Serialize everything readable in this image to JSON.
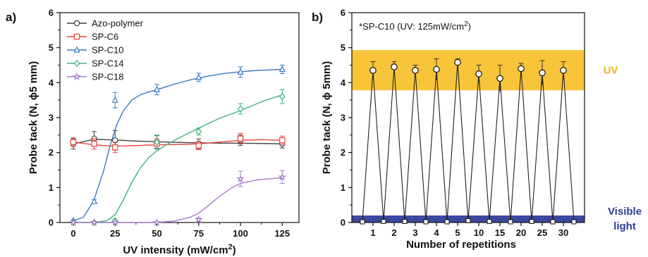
{
  "colors": {
    "azo": "#404040",
    "c6": "#e8433c",
    "c10": "#3b79c4",
    "c14": "#3fb27f",
    "c18": "#a67dc6",
    "uv_band": "#f8c53a",
    "uv_text": "#f2b01e",
    "visible_band": "#3c47a0",
    "visible_text": "#2f3f9d"
  },
  "chart_data": [
    {
      "type": "line",
      "panel_label": "a)",
      "xlabel": "UV intensity (mW/cm",
      "xlabel_sup": "2",
      "xlabel_end": ")",
      "ylabel": "Probe tack (N, ϕ5 mm)",
      "xlim": [
        -8,
        135
      ],
      "ylim": [
        0,
        6
      ],
      "xticks": [
        0,
        25,
        50,
        75,
        100,
        125
      ],
      "yticks": [
        0,
        1,
        2,
        3,
        4,
        5,
        6
      ],
      "legend_position": "top-left",
      "series": [
        {
          "name": "Azo-polymer",
          "color_key": "azo",
          "marker": "circle",
          "x": [
            0,
            12.5,
            25,
            50,
            75,
            100,
            125
          ],
          "y": [
            2.25,
            2.4,
            2.35,
            2.3,
            2.25,
            2.35,
            2.25
          ],
          "err": [
            0.15,
            0.2,
            0.28,
            0.18,
            0.14,
            0.15,
            0.12
          ],
          "fit_x": [
            0,
            12.5,
            25,
            37.5,
            50,
            62.5,
            75,
            87.5,
            100,
            112.5,
            125
          ],
          "fit_y": [
            2.25,
            2.38,
            2.36,
            2.33,
            2.31,
            2.29,
            2.28,
            2.27,
            2.27,
            2.26,
            2.25
          ]
        },
        {
          "name": "SP-C6",
          "color_key": "c6",
          "marker": "square",
          "x": [
            0,
            12.5,
            25,
            50,
            75,
            100,
            125
          ],
          "y": [
            2.3,
            2.25,
            2.15,
            2.25,
            2.2,
            2.4,
            2.35
          ],
          "err": [
            0.12,
            0.15,
            0.15,
            0.15,
            0.12,
            0.15,
            0.12
          ],
          "fit_x": [
            0,
            12.5,
            25,
            37.5,
            50,
            62.5,
            75,
            87.5,
            100,
            112.5,
            125
          ],
          "fit_y": [
            2.3,
            2.22,
            2.18,
            2.2,
            2.22,
            2.23,
            2.25,
            2.3,
            2.35,
            2.37,
            2.35
          ]
        },
        {
          "name": "SP-C10",
          "color_key": "c10",
          "marker": "triangle",
          "x": [
            0,
            12.5,
            25,
            50,
            75,
            100,
            125
          ],
          "y": [
            0.05,
            0.6,
            3.5,
            3.8,
            4.15,
            4.3,
            4.38
          ],
          "err": [
            0.03,
            0.05,
            0.22,
            0.15,
            0.12,
            0.15,
            0.12
          ],
          "fit_x": [
            0,
            6,
            12,
            18,
            22,
            26,
            30,
            35,
            40,
            45,
            50,
            60,
            70,
            80,
            90,
            100,
            110,
            125
          ],
          "fit_y": [
            0.05,
            0.15,
            0.6,
            1.45,
            2.2,
            2.8,
            3.2,
            3.5,
            3.65,
            3.73,
            3.8,
            3.95,
            4.08,
            4.18,
            4.26,
            4.31,
            4.35,
            4.38
          ]
        },
        {
          "name": "SP-C14",
          "color_key": "c14",
          "marker": "diamond",
          "x": [
            0,
            12.5,
            25,
            50,
            75,
            100,
            125
          ],
          "y": [
            0.0,
            0.0,
            0.05,
            2.3,
            2.6,
            3.25,
            3.6
          ],
          "err": [
            0.02,
            0.02,
            0.05,
            0.2,
            0.1,
            0.15,
            0.2
          ],
          "fit_x": [
            0,
            12.5,
            20,
            25,
            30,
            35,
            40,
            45,
            50,
            55,
            62.5,
            75,
            87.5,
            100,
            112.5,
            125
          ],
          "fit_y": [
            0.0,
            0.0,
            0.05,
            0.22,
            0.65,
            1.15,
            1.55,
            1.85,
            2.05,
            2.2,
            2.4,
            2.7,
            2.98,
            3.2,
            3.45,
            3.65
          ]
        },
        {
          "name": "SP-C18",
          "color_key": "c18",
          "marker": "star",
          "x": [
            0,
            12.5,
            25,
            50,
            75,
            100,
            125
          ],
          "y": [
            0.0,
            0.0,
            0.0,
            0.0,
            0.08,
            1.25,
            1.3
          ],
          "err": [
            0.02,
            0.02,
            0.02,
            0.03,
            0.05,
            0.22,
            0.18
          ],
          "fit_x": [
            0,
            25,
            50,
            60,
            70,
            75,
            80,
            87.5,
            95,
            100,
            110,
            125
          ],
          "fit_y": [
            0.0,
            0.0,
            0.0,
            0.04,
            0.15,
            0.27,
            0.45,
            0.75,
            1.0,
            1.12,
            1.22,
            1.28
          ]
        }
      ]
    },
    {
      "type": "line",
      "panel_label": "b)",
      "xlabel": "Number of repetitions",
      "ylabel": "Probe tack (N, ϕ 5mm)",
      "ylim": [
        0,
        6
      ],
      "yticks": [
        0,
        1,
        2,
        3,
        4,
        5,
        6
      ],
      "categories": [
        "1",
        "2",
        "3",
        "4",
        "5",
        "10",
        "15",
        "20",
        "25",
        "30"
      ],
      "annotation_pre": "*SP-C10 (UV: 125mW/cm",
      "annotation_sup": "2",
      "annotation_post": ")",
      "uv_band": [
        3.78,
        4.93
      ],
      "visible_band": [
        0.0,
        0.2
      ],
      "uv_label": "UV",
      "visible_label_1": "Visible",
      "visible_label_2": "light",
      "peaks": [
        4.35,
        4.45,
        4.35,
        4.38,
        4.58,
        4.25,
        4.12,
        4.4,
        4.28,
        4.35
      ],
      "peak_err": [
        0.25,
        0.15,
        0.15,
        0.3,
        0.1,
        0.25,
        0.38,
        0.15,
        0.35,
        0.25
      ],
      "valleys": [
        0.02,
        0.03,
        0.03,
        0.02,
        0.02,
        0.05,
        0.03,
        0.02,
        0.03,
        0.02,
        0.02
      ],
      "valley_err": [
        0.05,
        0.05,
        0.05,
        0.05,
        0.05,
        0.06,
        0.05,
        0.05,
        0.05,
        0.05,
        0.05
      ]
    }
  ]
}
